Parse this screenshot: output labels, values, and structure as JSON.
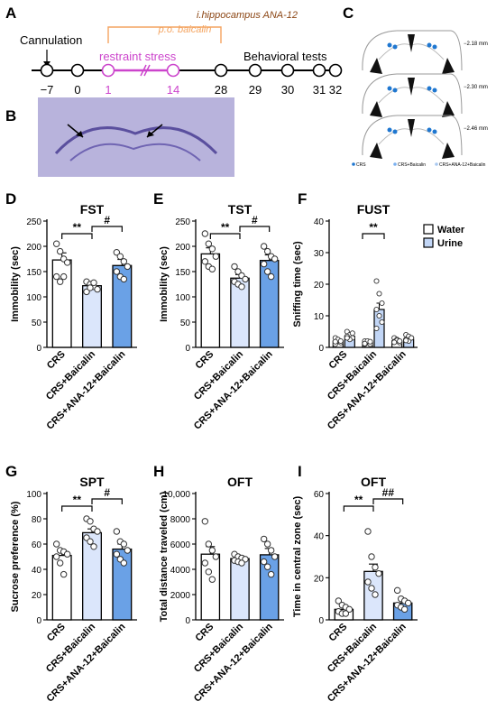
{
  "panel_letters": {
    "A": "A",
    "B": "B",
    "C": "C",
    "D": "D",
    "E": "E",
    "F": "F",
    "G": "G",
    "H": "H",
    "I": "I"
  },
  "timeline": {
    "top_label": "i.hippocampus ANA-12",
    "sub_label": "p.o. baicalin",
    "cannulation": "Cannulation",
    "stress": "restraint stress",
    "tests": "Behavioral tests",
    "days": [
      "−7",
      "0",
      "1",
      "14",
      "28",
      "29",
      "30",
      "31",
      "32"
    ],
    "colors": {
      "ana": "#8B4513",
      "baicalin": "#F4A460",
      "stress": "#CC44CC"
    }
  },
  "atlas_levels": [
    "−2.18 mm",
    "−2.30 mm",
    "−2.46 mm"
  ],
  "atlas_legend": [
    "CRS",
    "CRS+Baicalin",
    "CRS+ANA-12+Baicalin"
  ],
  "legend": {
    "water": "Water",
    "urine": "Urine"
  },
  "colors": {
    "white": "#ffffff",
    "light": "#dbe6fb",
    "mid": "#6aa1e6",
    "bar_light2": "#c2d6f6"
  },
  "chart_data": [
    {
      "id": "D",
      "type": "bar",
      "title": "FST",
      "ylabel": "Immobility (sec)",
      "categories": [
        "CRS",
        "CRS+Baicalin",
        "CRS+ANA-12+Baicalin"
      ],
      "values": [
        173,
        122,
        162
      ],
      "errors": [
        14,
        7,
        12
      ],
      "ylim": [
        0,
        250
      ],
      "yticks": [
        "0",
        "50",
        "100",
        "150",
        "200",
        "250"
      ],
      "points": [
        [
          205,
          190,
          175,
          168,
          140,
          130,
          140
        ],
        [
          130,
          125,
          120,
          115,
          110,
          118,
          128
        ],
        [
          188,
          180,
          170,
          160,
          150,
          140,
          135
        ]
      ],
      "annotations": [
        {
          "from": 0,
          "to": 1,
          "label": "**"
        },
        {
          "from": 1,
          "to": 2,
          "label": "#"
        }
      ]
    },
    {
      "id": "E",
      "type": "bar",
      "title": "TST",
      "ylabel": "Immobility (sec)",
      "categories": [
        "CRS",
        "CRS+Baicalin",
        "CRS+ANA-12+Baicalin"
      ],
      "values": [
        185,
        137,
        172
      ],
      "errors": [
        12,
        7,
        11
      ],
      "ylim": [
        0,
        250
      ],
      "yticks": [
        "0",
        "50",
        "100",
        "150",
        "200",
        "250"
      ],
      "points": [
        [
          225,
          205,
          195,
          180,
          170,
          160,
          155
        ],
        [
          160,
          150,
          142,
          135,
          130,
          125,
          120
        ],
        [
          200,
          190,
          180,
          175,
          165,
          150,
          140
        ]
      ],
      "annotations": [
        {
          "from": 0,
          "to": 1,
          "label": "**"
        },
        {
          "from": 1,
          "to": 2,
          "label": "#"
        }
      ]
    },
    {
      "id": "F",
      "type": "bar",
      "title": "FUST",
      "ylabel": "Sniffing time (sec)",
      "categories": [
        "CRS",
        "CRS+Baicalin",
        "CRS+ANA-12+Baicalin"
      ],
      "series": [
        {
          "name": "Water",
          "values": [
            2,
            1.5,
            2
          ],
          "errors": [
            0.5,
            0.4,
            0.5
          ]
        },
        {
          "name": "Urine",
          "values": [
            3.5,
            12,
            2.5
          ],
          "errors": [
            0.8,
            2,
            0.5
          ]
        }
      ],
      "ylim": [
        0,
        40
      ],
      "yticks": [
        "0",
        "10",
        "20",
        "30",
        "40"
      ],
      "points": [
        [
          [
            3,
            2,
            1.5,
            1,
            2.5,
            2,
            1.8
          ],
          [
            5,
            4,
            3,
            3.5,
            2.5,
            4.5,
            3
          ]
        ],
        [
          [
            2,
            1.5,
            1,
            1,
            2,
            1.8,
            1.2
          ],
          [
            21,
            17,
            14,
            12,
            10,
            8,
            6
          ]
        ],
        [
          [
            3,
            2.5,
            1.5,
            1.8,
            2.2,
            2,
            1.6
          ],
          [
            4,
            3.5,
            3,
            2.5,
            2,
            3,
            2.2
          ]
        ]
      ],
      "annotations": [
        {
          "group": 1,
          "label": "**"
        }
      ]
    },
    {
      "id": "G",
      "type": "bar",
      "title": "SPT",
      "ylabel": "Sucrose preference (%)",
      "categories": [
        "CRS",
        "CRS+Baicalin",
        "CRS+ANA-12+Baicalin"
      ],
      "values": [
        51,
        69,
        56
      ],
      "errors": [
        4,
        3,
        4
      ],
      "ylim": [
        0,
        100
      ],
      "yticks": [
        "0",
        "20",
        "40",
        "60",
        "80",
        "100"
      ],
      "points": [
        [
          60,
          55,
          54,
          52,
          50,
          45,
          36
        ],
        [
          80,
          78,
          72,
          70,
          65,
          62,
          58
        ],
        [
          70,
          62,
          60,
          55,
          52,
          48,
          45
        ]
      ],
      "annotations": [
        {
          "from": 0,
          "to": 1,
          "label": "**"
        },
        {
          "from": 1,
          "to": 2,
          "label": "#"
        }
      ]
    },
    {
      "id": "H",
      "type": "bar",
      "title": "OFT",
      "ylabel": "Total distance traveled (cm)",
      "categories": [
        "CRS",
        "CRS+Baicalin",
        "CRS+ANA-12+Baicalin"
      ],
      "values": [
        5200,
        4850,
        5150
      ],
      "errors": [
        600,
        200,
        500
      ],
      "ylim": [
        0,
        10000
      ],
      "yticks": [
        "0",
        "2000",
        "4000",
        "6000",
        "8000",
        "10,000"
      ],
      "points": [
        [
          7800,
          6000,
          5500,
          5000,
          4500,
          3800,
          3200
        ],
        [
          5200,
          5000,
          4900,
          4800,
          4700,
          4600,
          4500
        ],
        [
          6400,
          6000,
          5500,
          5000,
          4600,
          4200,
          3600
        ]
      ],
      "annotations": []
    },
    {
      "id": "I",
      "type": "bar",
      "title": "OFT",
      "ylabel": "Time in central zone (sec)",
      "categories": [
        "CRS",
        "CRS+Baicalin",
        "CRS+ANA-12+Baicalin"
      ],
      "values": [
        5,
        23,
        8
      ],
      "errors": [
        1.2,
        3.5,
        1.2
      ],
      "ylim": [
        0,
        60
      ],
      "yticks": [
        "0",
        "20",
        "40",
        "60"
      ],
      "points": [
        [
          9,
          7,
          6,
          5,
          4,
          3,
          3
        ],
        [
          42,
          30,
          25,
          22,
          18,
          15,
          12
        ],
        [
          14,
          10,
          9,
          8,
          7,
          6,
          5
        ]
      ],
      "annotations": [
        {
          "from": 0,
          "to": 1,
          "label": "**"
        },
        {
          "from": 1,
          "to": 2,
          "label": "##"
        }
      ]
    }
  ]
}
